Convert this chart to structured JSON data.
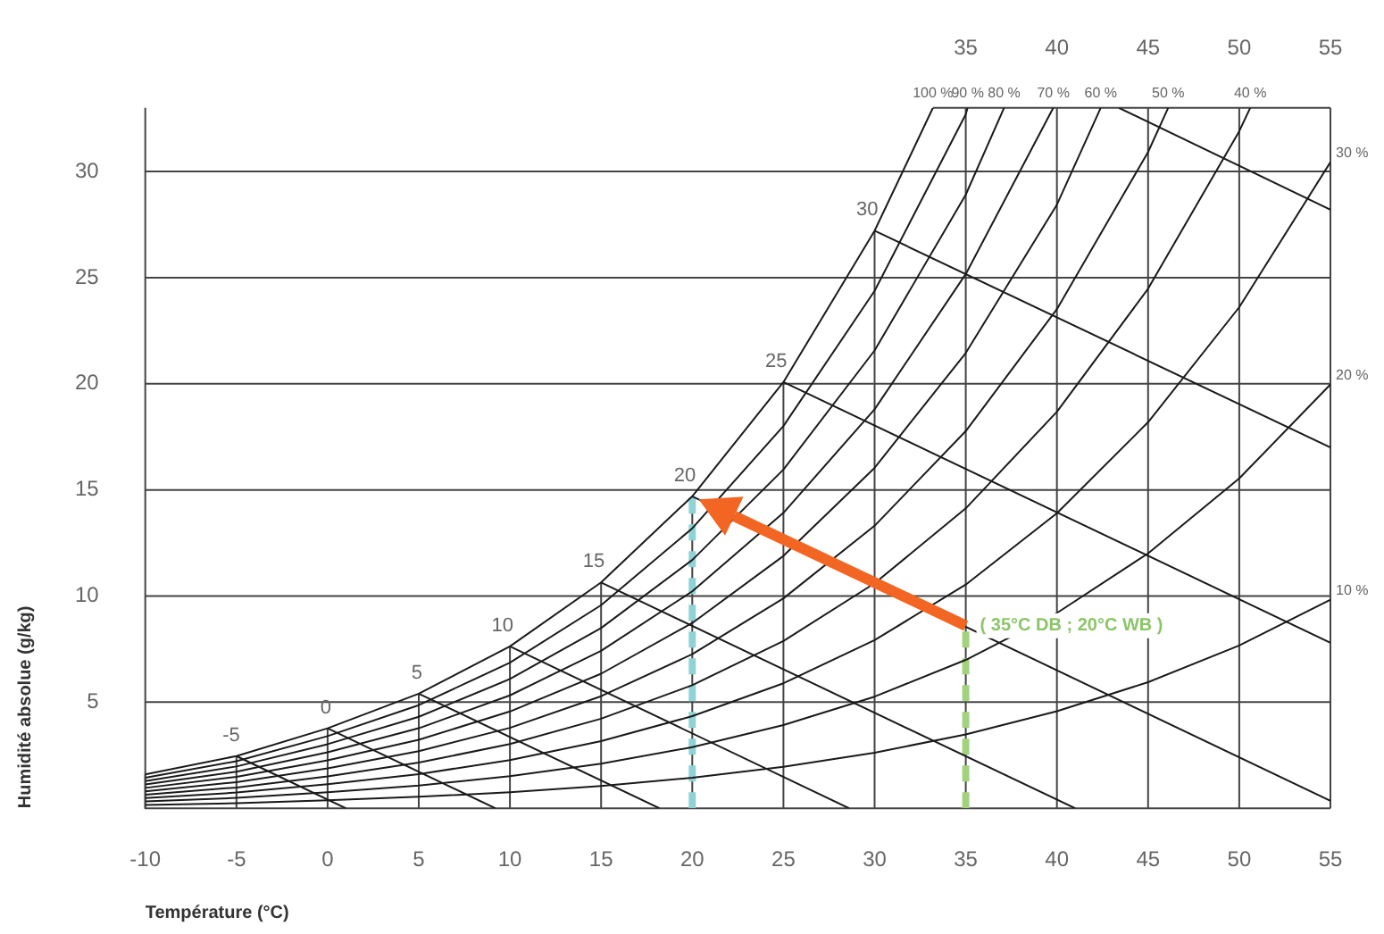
{
  "chart_data": {
    "type": "line",
    "xlabel": "Température (°C)",
    "ylabel": "Humidité absolue (g/kg)",
    "xlim": [
      -10,
      55
    ],
    "xticks": [
      -10,
      -5,
      0,
      5,
      10,
      15,
      20,
      25,
      30,
      35,
      40,
      45,
      50,
      55
    ],
    "x2lim": [
      -10,
      55
    ],
    "x2ticks": [
      35,
      40,
      45,
      50,
      55
    ],
    "ylim": [
      0,
      33
    ],
    "yticks": [
      5,
      10,
      15,
      20,
      25,
      30
    ],
    "grid": true,
    "marker": "none",
    "annotations": [
      {
        "text": "( 35°C DB ; 20°C WB )",
        "x": 35,
        "y": 8.6
      }
    ],
    "series": [
      {
        "name": "100 %",
        "color": "#1a1a1a",
        "x": [
          -10,
          -5,
          0,
          5,
          10,
          15,
          20,
          25,
          30,
          33.2
        ],
        "values": [
          1.6,
          2.46,
          3.77,
          5.4,
          7.63,
          10.64,
          14.7,
          20.08,
          27.21,
          33
        ]
      },
      {
        "name": "90 %",
        "color": "#1a1a1a",
        "x": [
          -10,
          -5,
          0,
          5,
          10,
          15,
          20,
          25,
          30,
          35,
          35.1
        ],
        "values": [
          1.44,
          2.22,
          3.4,
          4.86,
          6.86,
          9.57,
          13.19,
          18.01,
          24.38,
          32.7,
          33
        ]
      },
      {
        "name": "80 %",
        "color": "#1a1a1a",
        "x": [
          -10,
          -5,
          0,
          5,
          10,
          15,
          20,
          25,
          30,
          35,
          37.1
        ],
        "values": [
          1.28,
          1.97,
          3.02,
          4.31,
          6.09,
          8.49,
          11.7,
          15.96,
          21.57,
          28.91,
          33
        ]
      },
      {
        "name": "70 %",
        "color": "#1a1a1a",
        "x": [
          -10,
          -5,
          0,
          5,
          10,
          15,
          20,
          25,
          30,
          35,
          39.8
        ],
        "values": [
          1.12,
          1.72,
          2.64,
          3.77,
          5.32,
          7.42,
          10.22,
          13.92,
          18.8,
          25.17,
          33
        ]
      },
      {
        "name": "60 %",
        "color": "#1a1a1a",
        "x": [
          -10,
          -5,
          0,
          5,
          10,
          15,
          20,
          25,
          30,
          35,
          40,
          42.4
        ],
        "values": [
          0.96,
          1.48,
          2.26,
          3.23,
          4.56,
          6.34,
          8.73,
          11.89,
          16.04,
          21.45,
          28.44,
          33
        ]
      },
      {
        "name": "50 %",
        "color": "#1a1a1a",
        "x": [
          -10,
          -5,
          0,
          5,
          10,
          15,
          20,
          25,
          30,
          35,
          40,
          45,
          46.1
        ],
        "values": [
          0.8,
          1.23,
          1.88,
          2.69,
          3.79,
          5.28,
          7.26,
          9.89,
          13.31,
          17.77,
          23.52,
          30.92,
          33
        ]
      },
      {
        "name": "40 %",
        "color": "#1a1a1a",
        "x": [
          -10,
          -5,
          0,
          5,
          10,
          15,
          20,
          25,
          30,
          35,
          40,
          45,
          50,
          50.6
        ],
        "values": [
          0.64,
          0.98,
          1.5,
          2.15,
          3.03,
          4.22,
          5.8,
          7.88,
          10.6,
          14.13,
          18.68,
          24.48,
          31.9,
          33
        ]
      },
      {
        "name": "30 %",
        "color": "#1a1a1a",
        "x": [
          -10,
          -5,
          0,
          5,
          10,
          15,
          20,
          25,
          30,
          35,
          40,
          45,
          50,
          55
        ],
        "values": [
          0.48,
          0.74,
          1.13,
          1.61,
          2.27,
          3.16,
          4.34,
          5.89,
          7.92,
          10.54,
          13.9,
          18.19,
          23.61,
          30.44
        ]
      },
      {
        "name": "20 %",
        "color": "#1a1a1a",
        "x": [
          -10,
          -5,
          0,
          5,
          10,
          15,
          20,
          25,
          30,
          35,
          40,
          45,
          50,
          55
        ],
        "values": [
          0.32,
          0.49,
          0.75,
          1.07,
          1.51,
          2.1,
          2.88,
          3.92,
          5.26,
          6.99,
          9.2,
          12.01,
          15.54,
          19.97
        ]
      },
      {
        "name": "10 %",
        "color": "#1a1a1a",
        "x": [
          -10,
          -5,
          0,
          5,
          10,
          15,
          20,
          25,
          30,
          35,
          40,
          45,
          50,
          55
        ],
        "values": [
          0.16,
          0.24,
          0.38,
          0.54,
          0.75,
          1.05,
          1.44,
          1.95,
          2.62,
          3.48,
          4.57,
          5.94,
          7.67,
          9.83
        ]
      },
      {
        "name": "-5",
        "color": "#1a1a1a",
        "x": [
          -5,
          1
        ],
        "values": [
          2.46,
          0
        ]
      },
      {
        "name": "0",
        "color": "#1a1a1a",
        "x": [
          0,
          9.2
        ],
        "values": [
          3.77,
          0
        ]
      },
      {
        "name": "5",
        "color": "#1a1a1a",
        "x": [
          5,
          18.2
        ],
        "values": [
          5.4,
          0
        ]
      },
      {
        "name": "10",
        "color": "#1a1a1a",
        "x": [
          10,
          28.6
        ],
        "values": [
          7.63,
          0
        ]
      },
      {
        "name": "15",
        "color": "#1a1a1a",
        "x": [
          15,
          41
        ],
        "values": [
          10.64,
          0
        ]
      },
      {
        "name": "20",
        "color": "#1a1a1a",
        "x": [
          20,
          55
        ],
        "values": [
          14.7,
          0.35
        ]
      },
      {
        "name": "25",
        "color": "#1a1a1a",
        "x": [
          25,
          55
        ],
        "values": [
          20.08,
          7.8
        ]
      },
      {
        "name": "30",
        "color": "#1a1a1a",
        "x": [
          30,
          55
        ],
        "values": [
          27.21,
          17
        ]
      },
      {
        "color": "#1a1a1a",
        "x": [
          43.4,
          55
        ],
        "values": [
          33,
          28.2
        ]
      },
      {
        "color": "#8fd3d6",
        "x": [
          20,
          20
        ],
        "values": [
          0,
          14.7
        ],
        "line_style": "dashed"
      },
      {
        "color": "#a3d27e",
        "x": [
          35,
          35
        ],
        "values": [
          0,
          8.6
        ],
        "line_style": "dashed"
      }
    ]
  }
}
